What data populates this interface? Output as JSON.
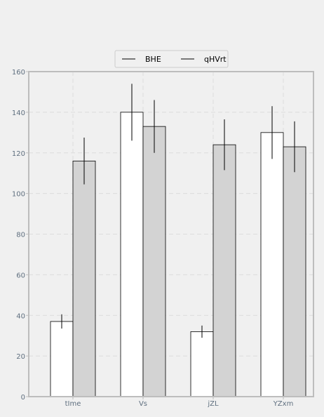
{
  "chart_data": {
    "type": "bar",
    "title": "",
    "xlabel": "",
    "ylabel": "",
    "categories": [
      "tIme",
      "Vs",
      "jZL",
      "YZxm"
    ],
    "series": [
      {
        "name": "BHE",
        "values": [
          37,
          140,
          32,
          130
        ],
        "errors": [
          3.5,
          14,
          3,
          13
        ],
        "color": "#ffffff"
      },
      {
        "name": "qHVrt",
        "values": [
          116,
          133,
          124,
          123
        ],
        "errors": [
          11.5,
          13,
          12.5,
          12.5
        ],
        "color": "#d3d3d3"
      }
    ],
    "ylim": [
      0,
      160
    ],
    "yticks": [
      "0",
      "20",
      "40",
      "60",
      "80",
      "100",
      "120",
      "140",
      "160"
    ],
    "grid": true,
    "legend_position": "top-center",
    "colors": {
      "background": "#f0f0f0",
      "frame": "#bdbdbd",
      "grid": "#dcdcdc",
      "tick_text": "#5f6f7f",
      "bar_edge": "#000000"
    }
  }
}
